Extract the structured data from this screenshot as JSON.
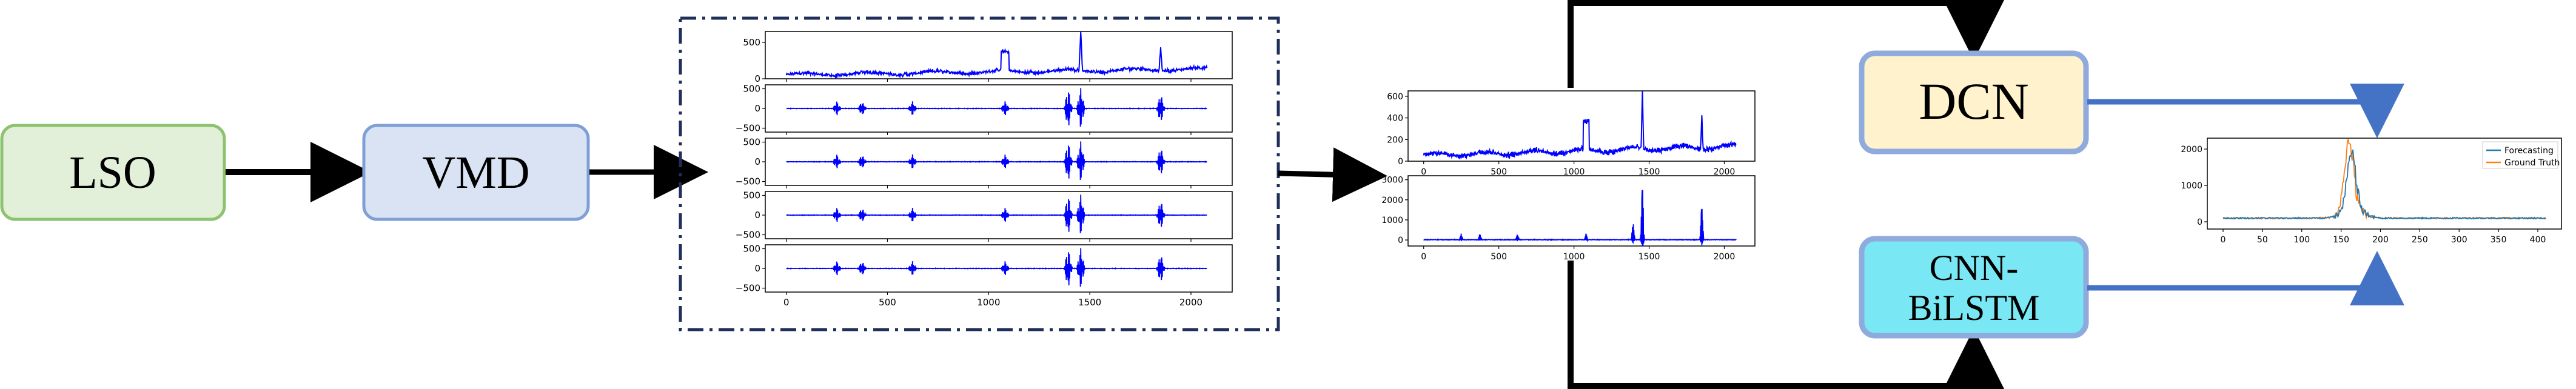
{
  "boxes": {
    "lso": {
      "label": "LSO",
      "fill": "#e2efd9",
      "stroke": "#8dc26f"
    },
    "vmd": {
      "label": "VMD",
      "fill": "#dae3f3",
      "stroke": "#7f9fd6"
    },
    "dcn": {
      "label": "DCN",
      "fill": "#fff2cc",
      "stroke": "#8faadc"
    },
    "cnn": {
      "label_line1": "CNN-",
      "label_line2": "BiLSTM",
      "fill": "#7ae8f4",
      "stroke": "#8faadc"
    }
  },
  "colors": {
    "signal": "#0000ff",
    "arrow_black": "#000000",
    "arrow_blue": "#4472c4",
    "forecast": "#1f77b4",
    "truth": "#ff7f0e",
    "dashed_border": "#1f2f5a"
  },
  "chart_data": [
    {
      "type": "line",
      "name": "vmd-modes",
      "x_ticks": [
        "0",
        "500",
        "1000",
        "1500",
        "2000"
      ],
      "series": [
        {
          "name": "",
          "y_ticks": [
            "500",
            "0"
          ],
          "ylim": [
            0,
            650
          ]
        },
        {
          "name": "",
          "y_ticks": [
            "500",
            "0",
            "−500"
          ],
          "ylim": [
            -600,
            600
          ]
        },
        {
          "name": "",
          "y_ticks": [
            "500",
            "0",
            "−500"
          ],
          "ylim": [
            -600,
            600
          ]
        },
        {
          "name": "",
          "y_ticks": [
            "500",
            "0",
            "−500"
          ],
          "ylim": [
            -600,
            600
          ]
        },
        {
          "name": "",
          "y_ticks": [
            "500",
            "0",
            "−500"
          ],
          "ylim": [
            -600,
            600
          ]
        }
      ]
    },
    {
      "type": "line",
      "name": "reconstructed-components",
      "x_ticks": [
        "0",
        "500",
        "1000",
        "1500",
        "2000"
      ],
      "series": [
        {
          "name": "",
          "y_ticks": [
            "600",
            "400",
            "200",
            "0"
          ],
          "ylim": [
            0,
            650
          ]
        },
        {
          "name": "",
          "y_ticks": [
            "3000",
            "2000",
            "1000",
            "0"
          ],
          "ylim": [
            -300,
            3200
          ]
        }
      ]
    },
    {
      "type": "line",
      "name": "forecast-result",
      "x_ticks": [
        "0",
        "50",
        "100",
        "150",
        "200",
        "250",
        "300",
        "350",
        "400"
      ],
      "y_ticks": [
        "2000",
        "1000",
        "0"
      ],
      "ylim": [
        -200,
        2300
      ],
      "legend": [
        "Forecasting",
        "Ground Truth"
      ],
      "legend_position": "top-right"
    }
  ]
}
